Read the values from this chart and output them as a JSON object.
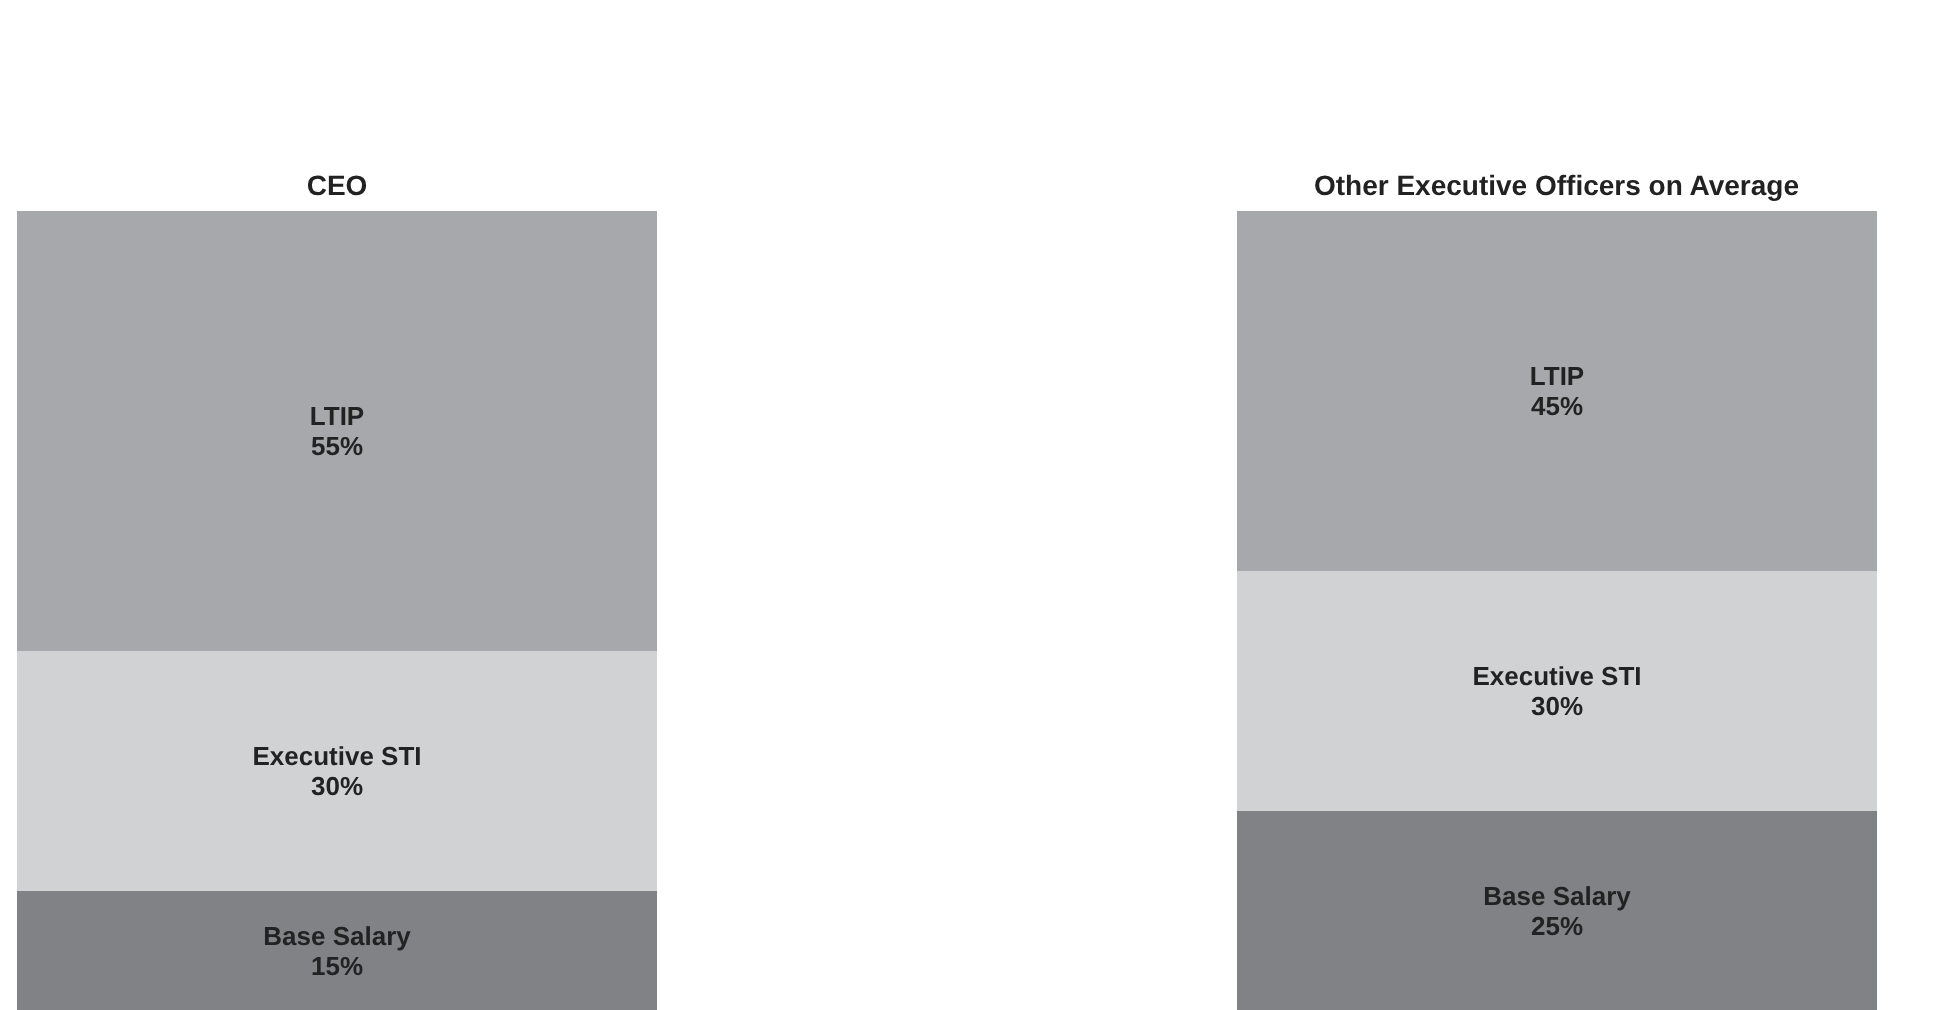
{
  "chart_data": [
    {
      "type": "bar",
      "title": "CEO",
      "categories": [
        null
      ],
      "stacked": true,
      "series": [
        {
          "name": "Base Salary",
          "color": "#818286",
          "values": [
            15
          ],
          "value_labels": [
            "15%"
          ]
        },
        {
          "name": "Executive STI",
          "color": "#d1d2d4",
          "values": [
            30
          ],
          "value_labels": [
            "30%"
          ]
        },
        {
          "name": "LTIP",
          "color": "#a7a8ab",
          "values": [
            55
          ],
          "value_labels": [
            "55%"
          ]
        }
      ]
    },
    {
      "type": "bar",
      "title": "Other Executive Officers on Average",
      "categories": [
        null
      ],
      "stacked": true,
      "series": [
        {
          "name": "Base Salary",
          "color": "#818286",
          "values": [
            25
          ],
          "value_labels": [
            "25%"
          ]
        },
        {
          "name": "Executive STI",
          "color": "#d1d2d4",
          "values": [
            30
          ],
          "value_labels": [
            "30%"
          ]
        },
        {
          "name": "LTIP",
          "color": "#a7a8ab",
          "values": [
            45
          ],
          "value_labels": [
            "45%"
          ]
        }
      ]
    }
  ]
}
